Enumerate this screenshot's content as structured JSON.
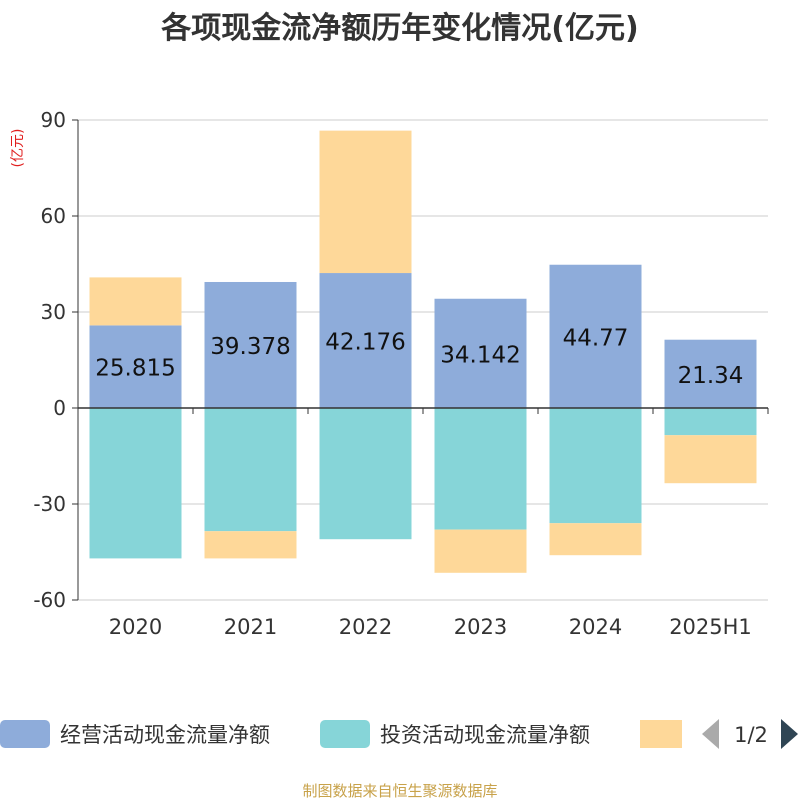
{
  "chart_data": {
    "type": "bar",
    "stacked": true,
    "title": "各项现金流净额历年变化情况(亿元)",
    "unit_label": "(亿元)",
    "categories": [
      "2020",
      "2021",
      "2022",
      "2023",
      "2024",
      "2025H1"
    ],
    "series": [
      {
        "name": "经营活动现金流量净额",
        "color": "#8eacda",
        "values": [
          25.815,
          39.378,
          42.176,
          34.142,
          44.77,
          21.34
        ],
        "labels": [
          "25.815",
          "39.378",
          "42.176",
          "34.142",
          "44.77",
          "21.34"
        ]
      },
      {
        "name": "投资活动现金流量净额",
        "color": "#86d5d8",
        "values": [
          -47.0,
          -38.5,
          -41.0,
          -38.0,
          -36.0,
          -8.5
        ]
      },
      {
        "name": "",
        "color": "#fed899",
        "values": [
          15.0,
          -8.5,
          44.5,
          -13.5,
          -10.0,
          -15.0
        ]
      }
    ],
    "y_ticks": [
      "90",
      "60",
      "30",
      "0",
      "-30",
      "-60"
    ],
    "ylim": [
      -60,
      90
    ],
    "grid": true,
    "legend_position": "bottom"
  },
  "legend": {
    "pager_text": "1/2",
    "prev_icon": "triangle-left-icon",
    "next_icon": "triangle-right-icon"
  },
  "source": "制图数据来自恒生聚源数据库"
}
